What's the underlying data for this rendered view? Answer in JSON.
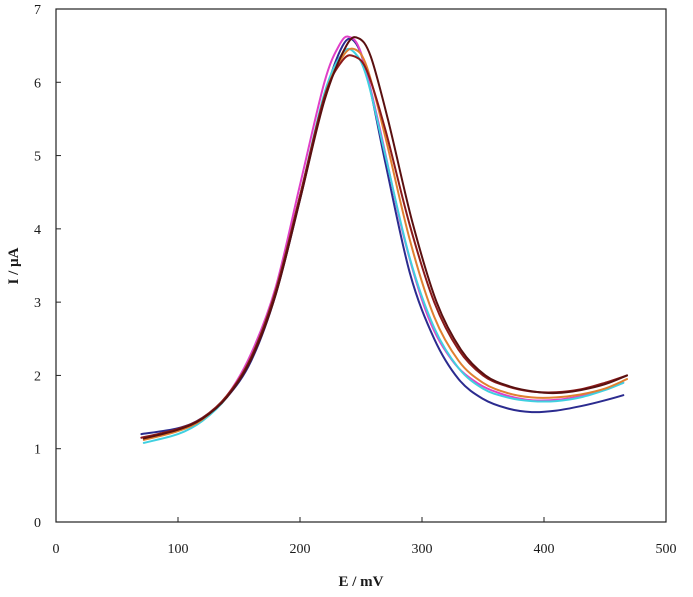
{
  "chart_data": {
    "type": "line",
    "title": "",
    "xlabel": "E / mV",
    "ylabel": "I / µA",
    "xlim": [
      0,
      500
    ],
    "ylim": [
      0,
      7
    ],
    "xticks": [
      0,
      100,
      200,
      300,
      400,
      500
    ],
    "yticks": [
      0,
      1,
      2,
      3,
      4,
      5,
      6,
      7
    ],
    "grid": false,
    "legend": "none",
    "series": [
      {
        "color": "#2b2b8f",
        "x": [
          70,
          100,
          120,
          140,
          160,
          180,
          200,
          220,
          235,
          245,
          255,
          270,
          290,
          310,
          330,
          350,
          370,
          390,
          410,
          430,
          450,
          465
        ],
        "y": [
          1.2,
          1.28,
          1.42,
          1.7,
          2.2,
          3.1,
          4.4,
          5.8,
          6.5,
          6.55,
          6.1,
          4.9,
          3.4,
          2.5,
          1.95,
          1.68,
          1.55,
          1.5,
          1.52,
          1.58,
          1.66,
          1.73
        ]
      },
      {
        "color": "#e040c8",
        "x": [
          70,
          100,
          120,
          140,
          160,
          180,
          200,
          220,
          232,
          240,
          250,
          265,
          285,
          305,
          325,
          345,
          365,
          385,
          405,
          425,
          445,
          465
        ],
        "y": [
          1.15,
          1.25,
          1.4,
          1.72,
          2.3,
          3.2,
          4.6,
          6.0,
          6.5,
          6.62,
          6.4,
          5.4,
          3.9,
          2.8,
          2.2,
          1.9,
          1.75,
          1.67,
          1.66,
          1.7,
          1.78,
          1.9
        ]
      },
      {
        "color": "#40d0e0",
        "x": [
          72,
          100,
          120,
          140,
          160,
          180,
          200,
          220,
          235,
          245,
          255,
          270,
          290,
          310,
          330,
          350,
          370,
          390,
          410,
          430,
          450,
          465
        ],
        "y": [
          1.08,
          1.2,
          1.38,
          1.7,
          2.25,
          3.15,
          4.45,
          5.85,
          6.4,
          6.4,
          6.05,
          5.0,
          3.6,
          2.65,
          2.1,
          1.82,
          1.7,
          1.65,
          1.65,
          1.7,
          1.8,
          1.9
        ]
      },
      {
        "color": "#e08030",
        "x": [
          72,
          100,
          120,
          140,
          160,
          180,
          200,
          220,
          235,
          245,
          255,
          270,
          290,
          310,
          330,
          350,
          370,
          390,
          410,
          430,
          450,
          468
        ],
        "y": [
          1.12,
          1.24,
          1.4,
          1.72,
          2.25,
          3.15,
          4.45,
          5.8,
          6.35,
          6.45,
          6.2,
          5.25,
          3.85,
          2.8,
          2.2,
          1.9,
          1.76,
          1.7,
          1.7,
          1.74,
          1.82,
          1.95
        ]
      },
      {
        "color": "#8b1a1a",
        "x": [
          70,
          100,
          120,
          140,
          160,
          180,
          200,
          220,
          235,
          245,
          255,
          270,
          290,
          310,
          330,
          350,
          370,
          390,
          410,
          430,
          450,
          468
        ],
        "y": [
          1.15,
          1.27,
          1.42,
          1.72,
          2.25,
          3.15,
          4.45,
          5.8,
          6.3,
          6.35,
          6.15,
          5.35,
          4.05,
          3.0,
          2.35,
          2.0,
          1.85,
          1.78,
          1.77,
          1.81,
          1.9,
          2.0
        ]
      },
      {
        "color": "#5a1010",
        "x": [
          72,
          100,
          120,
          140,
          160,
          180,
          200,
          220,
          238,
          248,
          258,
          272,
          292,
          312,
          332,
          352,
          372,
          392,
          410,
          430,
          450,
          468
        ],
        "y": [
          1.14,
          1.26,
          1.41,
          1.7,
          2.22,
          3.1,
          4.4,
          5.75,
          6.5,
          6.6,
          6.35,
          5.5,
          4.1,
          3.0,
          2.35,
          2.0,
          1.85,
          1.78,
          1.76,
          1.8,
          1.88,
          2.0
        ]
      }
    ]
  }
}
